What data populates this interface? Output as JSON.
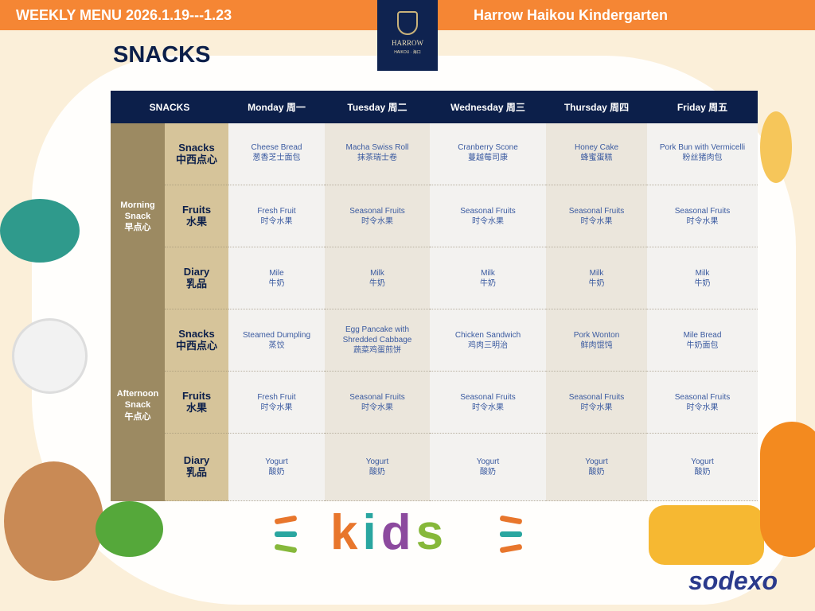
{
  "header": {
    "left": "WEEKLY MENU  2026.1.19---1.23",
    "right": "Harrow Haikou Kindergarten",
    "logo_text": "HARROW",
    "logo_sub": "HAIKOU · 海口"
  },
  "title": "SNACKS",
  "table": {
    "corner": "SNACKS",
    "days": [
      "Monday 周一",
      "Tuesday 周二",
      "Wednesday 周三",
      "Thursday 周四",
      "Friday 周五"
    ],
    "meals": [
      {
        "label": [
          "Morning",
          "Snack",
          "早点心"
        ],
        "rows": [
          {
            "cat": [
              "Snacks",
              "中西点心"
            ],
            "items": [
              [
                "Cheese Bread",
                "葱香芝士面包"
              ],
              [
                "Macha Swiss Roll",
                "抹茶瑞士卷"
              ],
              [
                "Cranberry Scone",
                "蔓越莓司康"
              ],
              [
                "Honey Cake",
                "蜂蜜蛋糕"
              ],
              [
                "Pork Bun with Vermicelli",
                "粉丝猪肉包"
              ]
            ]
          },
          {
            "cat": [
              "Fruits",
              "水果"
            ],
            "items": [
              [
                "Fresh Fruit",
                "时令水果"
              ],
              [
                "Seasonal Fruits",
                "时令水果"
              ],
              [
                "Seasonal Fruits",
                "时令水果"
              ],
              [
                "Seasonal Fruits",
                "时令水果"
              ],
              [
                "Seasonal Fruits",
                "时令水果"
              ]
            ]
          },
          {
            "cat": [
              "Diary",
              "乳品"
            ],
            "items": [
              [
                "Mile",
                "牛奶"
              ],
              [
                "Milk",
                "牛奶"
              ],
              [
                "Milk",
                "牛奶"
              ],
              [
                "Milk",
                "牛奶"
              ],
              [
                "Milk",
                "牛奶"
              ]
            ]
          }
        ]
      },
      {
        "label": [
          "Afternoon",
          "Snack",
          "午点心"
        ],
        "rows": [
          {
            "cat": [
              "Snacks",
              "中西点心"
            ],
            "items": [
              [
                "Steamed Dumpling",
                "蒸饺"
              ],
              [
                "Egg Pancake with",
                "Shredded Cabbage",
                "蔬菜鸡蛋煎饼"
              ],
              [
                "Chicken Sandwich",
                "鸡肉三明治"
              ],
              [
                "Pork Wonton",
                "鲜肉馄饨"
              ],
              [
                "Mile Bread",
                "牛奶面包"
              ]
            ]
          },
          {
            "cat": [
              "Fruits",
              "水果"
            ],
            "items": [
              [
                "Fresh Fruit",
                "时令水果"
              ],
              [
                "Seasonal Fruits",
                "时令水果"
              ],
              [
                "Seasonal Fruits",
                "时令水果"
              ],
              [
                "Seasonal Fruits",
                "时令水果"
              ],
              [
                "Seasonal Fruits",
                "时令水果"
              ]
            ]
          },
          {
            "cat": [
              "Diary",
              "乳品"
            ],
            "items": [
              [
                "Yogurt",
                "酸奶"
              ],
              [
                "Yogurt",
                "酸奶"
              ],
              [
                "Yogurt",
                "酸奶"
              ],
              [
                "Yogurt",
                "酸奶"
              ],
              [
                "Yogurt",
                "酸奶"
              ]
            ]
          }
        ]
      }
    ]
  },
  "footer": {
    "kids": [
      "k",
      "i",
      "d",
      "s"
    ],
    "brand": "sodexo"
  },
  "colors": {
    "topbar": "#f58634",
    "navy": "#0c1f4a",
    "meal": "#9c8a62",
    "category": "#d6c49a",
    "item_text": "#3a5aa0"
  }
}
